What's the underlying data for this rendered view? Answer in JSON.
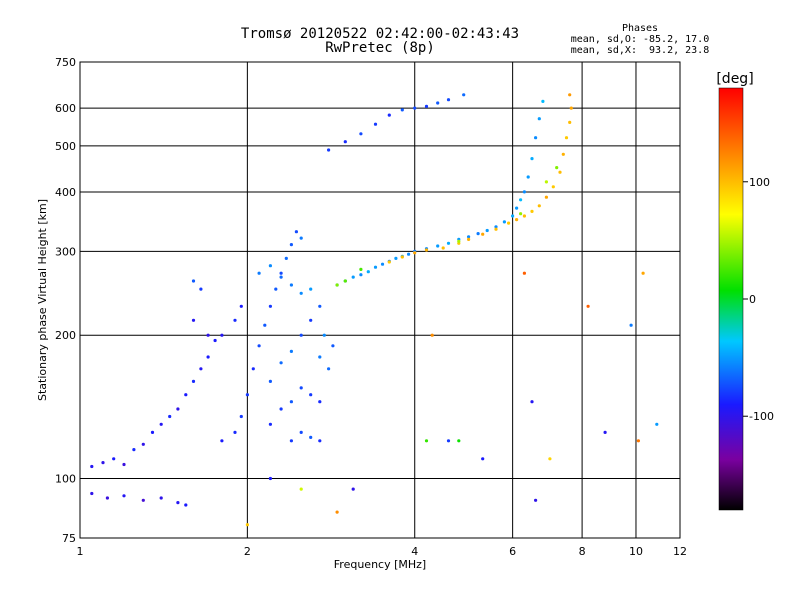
{
  "header": {
    "title": "Tromsø 20120522 02:42:00-02:43:43",
    "subtitle": "RwPretec (8p)"
  },
  "phases": {
    "heading": "Phases",
    "line1": "mean, sd,O: -85.2, 17.0",
    "line2": "mean, sd,X:  93.2, 23.8"
  },
  "chart_data": {
    "type": "scatter",
    "xlabel": "Frequency [MHz]",
    "ylabel": "Stationary phase Virtual Height [km]",
    "x_scale": "log",
    "y_scale": "log",
    "xlim": [
      1,
      12
    ],
    "ylim": [
      75,
      750
    ],
    "grid": true,
    "x_ticks": [
      "1",
      "2",
      "4",
      "6",
      "8",
      "10",
      "12"
    ],
    "x_tick_values": [
      1,
      2,
      4,
      6,
      8,
      10,
      12
    ],
    "y_ticks": [
      "75",
      "100",
      "200",
      "300",
      "400",
      "500",
      "600",
      "750"
    ],
    "y_tick_values": [
      75,
      100,
      200,
      300,
      400,
      500,
      600,
      750
    ],
    "colorbar": {
      "label": "[deg]",
      "range": [
        -180,
        180
      ],
      "ticks": [
        "100",
        "0",
        "-100"
      ],
      "tick_values": [
        100,
        0,
        -100
      ]
    },
    "series": [
      {
        "points": [
          [
            1.05,
            93,
            -100
          ],
          [
            1.12,
            91,
            -105
          ],
          [
            1.2,
            92,
            -95
          ],
          [
            1.3,
            90,
            -110
          ],
          [
            1.4,
            91,
            -100
          ],
          [
            1.5,
            89,
            -95
          ],
          [
            1.55,
            88,
            -90
          ],
          [
            1.05,
            106,
            -95
          ],
          [
            1.1,
            108,
            -100
          ],
          [
            1.15,
            110,
            -90
          ],
          [
            1.2,
            107,
            -105
          ],
          [
            1.25,
            115,
            -85
          ],
          [
            1.3,
            118,
            -100
          ],
          [
            1.35,
            125,
            -90
          ],
          [
            1.4,
            130,
            -95
          ],
          [
            1.45,
            135,
            -85
          ],
          [
            1.5,
            140,
            -100
          ],
          [
            1.55,
            150,
            -90
          ],
          [
            1.6,
            160,
            -85
          ],
          [
            1.65,
            170,
            -95
          ],
          [
            1.7,
            180,
            -90
          ],
          [
            1.6,
            215,
            -95
          ],
          [
            1.7,
            200,
            -100
          ],
          [
            1.75,
            195,
            -90
          ],
          [
            1.8,
            200,
            -95
          ],
          [
            1.9,
            215,
            -85
          ],
          [
            1.95,
            230,
            -90
          ],
          [
            1.6,
            260,
            -70
          ],
          [
            1.65,
            250,
            -80
          ],
          [
            1.8,
            120,
            -90
          ],
          [
            1.9,
            125,
            -85
          ],
          [
            1.95,
            135,
            -80
          ],
          [
            2.0,
            150,
            -80
          ],
          [
            2.05,
            170,
            -85
          ],
          [
            2.1,
            190,
            -75
          ],
          [
            2.15,
            210,
            -70
          ],
          [
            2.2,
            230,
            -80
          ],
          [
            2.25,
            250,
            -70
          ],
          [
            2.3,
            270,
            -75
          ],
          [
            2.35,
            290,
            -65
          ],
          [
            2.4,
            310,
            -70
          ],
          [
            2.45,
            330,
            -75
          ],
          [
            2.5,
            320,
            -60
          ],
          [
            2.2,
            160,
            -70
          ],
          [
            2.3,
            175,
            -65
          ],
          [
            2.4,
            185,
            -60
          ],
          [
            2.5,
            200,
            -75
          ],
          [
            2.6,
            215,
            -80
          ],
          [
            2.7,
            230,
            -70
          ],
          [
            2.2,
            130,
            -85
          ],
          [
            2.3,
            140,
            -80
          ],
          [
            2.4,
            145,
            -70
          ],
          [
            2.5,
            155,
            -75
          ],
          [
            2.6,
            150,
            -80
          ],
          [
            2.7,
            145,
            -85
          ],
          [
            2.1,
            270,
            -60
          ],
          [
            2.2,
            280,
            -55
          ],
          [
            2.3,
            265,
            -65
          ],
          [
            2.4,
            255,
            -60
          ],
          [
            2.5,
            245,
            -55
          ],
          [
            2.6,
            250,
            -50
          ],
          [
            2.7,
            180,
            -60
          ],
          [
            2.75,
            200,
            -55
          ],
          [
            2.8,
            170,
            -65
          ],
          [
            2.85,
            190,
            -70
          ],
          [
            2.4,
            120,
            -80
          ],
          [
            2.5,
            125,
            -75
          ],
          [
            2.6,
            122,
            -70
          ],
          [
            2.7,
            120,
            -85
          ],
          [
            2.9,
            255,
            -55
          ],
          [
            3.0,
            260,
            -60
          ],
          [
            3.1,
            265,
            -50
          ],
          [
            3.2,
            268,
            -55
          ],
          [
            3.3,
            272,
            -45
          ],
          [
            3.4,
            278,
            -50
          ],
          [
            3.5,
            282,
            -55
          ],
          [
            3.6,
            286,
            -60
          ],
          [
            3.7,
            290,
            -50
          ],
          [
            3.8,
            293,
            -45
          ],
          [
            3.9,
            296,
            -55
          ],
          [
            4.0,
            300,
            -60
          ],
          [
            4.2,
            304,
            -55
          ],
          [
            4.4,
            308,
            -50
          ],
          [
            4.6,
            312,
            -45
          ],
          [
            4.8,
            318,
            -50
          ],
          [
            5.0,
            322,
            -55
          ],
          [
            5.2,
            327,
            -60
          ],
          [
            5.4,
            332,
            -50
          ],
          [
            5.6,
            338,
            -55
          ],
          [
            5.8,
            346,
            -50
          ],
          [
            6.0,
            356,
            -45
          ],
          [
            6.1,
            370,
            -50
          ],
          [
            6.2,
            385,
            -40
          ],
          [
            6.3,
            400,
            -55
          ],
          [
            6.4,
            430,
            -50
          ],
          [
            6.5,
            470,
            -45
          ],
          [
            6.6,
            520,
            -55
          ],
          [
            6.7,
            570,
            -50
          ],
          [
            6.8,
            620,
            -40
          ],
          [
            2.8,
            490,
            -80
          ],
          [
            3.0,
            510,
            -85
          ],
          [
            3.2,
            530,
            -75
          ],
          [
            3.4,
            555,
            -80
          ],
          [
            3.6,
            580,
            -85
          ],
          [
            3.8,
            595,
            -70
          ],
          [
            4.0,
            600,
            -75
          ],
          [
            4.2,
            605,
            -80
          ],
          [
            4.4,
            615,
            -70
          ],
          [
            4.6,
            625,
            -75
          ],
          [
            4.9,
            640,
            -65
          ],
          [
            3.1,
            95,
            -100
          ],
          [
            5.3,
            110,
            -90
          ],
          [
            6.6,
            90,
            -100
          ],
          [
            8.8,
            125,
            -95
          ],
          [
            9.8,
            210,
            -60
          ],
          [
            10.9,
            130,
            -50
          ],
          [
            6.5,
            145,
            -95
          ],
          [
            4.6,
            120,
            -80
          ],
          [
            2.2,
            100,
            -90
          ]
        ]
      },
      {
        "points": [
          [
            3.6,
            285,
            95
          ],
          [
            3.8,
            292,
            100
          ],
          [
            4.0,
            298,
            110
          ],
          [
            4.2,
            302,
            105
          ],
          [
            4.5,
            305,
            100
          ],
          [
            4.8,
            312,
            95
          ],
          [
            5.0,
            318,
            105
          ],
          [
            5.3,
            326,
            110
          ],
          [
            5.6,
            334,
            100
          ],
          [
            5.9,
            344,
            95
          ],
          [
            6.1,
            350,
            105
          ],
          [
            6.3,
            356,
            100
          ],
          [
            6.5,
            364,
            95
          ],
          [
            6.7,
            374,
            100
          ],
          [
            6.9,
            390,
            110
          ],
          [
            7.1,
            410,
            95
          ],
          [
            7.3,
            440,
            100
          ],
          [
            7.4,
            480,
            105
          ],
          [
            7.5,
            520,
            95
          ],
          [
            7.6,
            560,
            100
          ],
          [
            7.65,
            600,
            110
          ],
          [
            7.6,
            640,
            115
          ],
          [
            2.0,
            80,
            95
          ],
          [
            2.9,
            85,
            120
          ],
          [
            7.0,
            110,
            90
          ],
          [
            10.1,
            120,
            130
          ],
          [
            8.2,
            230,
            140
          ],
          [
            10.3,
            270,
            110
          ],
          [
            6.3,
            270,
            140
          ],
          [
            4.3,
            200,
            120
          ]
        ]
      },
      {
        "points": [
          [
            2.9,
            255,
            40
          ],
          [
            3.0,
            260,
            30
          ],
          [
            3.2,
            275,
            25
          ],
          [
            4.8,
            315,
            50
          ],
          [
            6.2,
            360,
            45
          ],
          [
            6.9,
            420,
            55
          ],
          [
            7.2,
            450,
            40
          ],
          [
            4.8,
            120,
            10
          ],
          [
            4.2,
            120,
            20
          ],
          [
            2.5,
            95,
            60
          ]
        ]
      }
    ]
  }
}
